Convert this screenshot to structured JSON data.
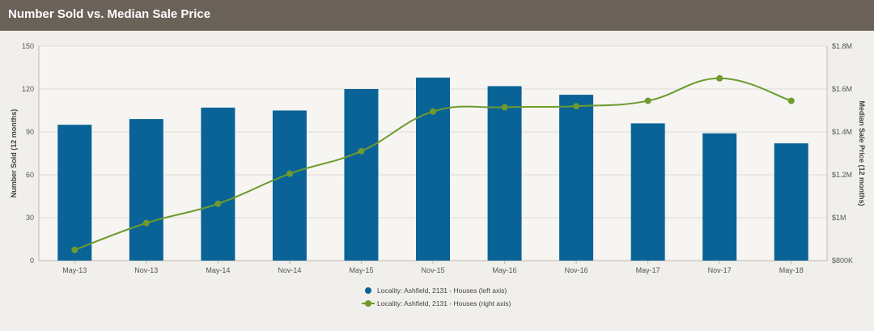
{
  "header": {
    "title": "Number Sold vs. Median Sale Price"
  },
  "colors": {
    "header_bg": "#6a6158",
    "bar": "#0a6397",
    "line": "#6e9a2e",
    "grid": "#dcdad6"
  },
  "chart_data": {
    "type": "bar+line",
    "title": "Number Sold vs. Median Sale Price",
    "categories": [
      "May-13",
      "Nov-13",
      "May-14",
      "Nov-14",
      "May-15",
      "Nov-15",
      "May-16",
      "Nov-16",
      "May-17",
      "Nov-17",
      "May-18"
    ],
    "ylabel_left": "Number Sold (12 months)",
    "ylabel_right": "Median Sale Price (12 months)",
    "ylim_left": [
      0,
      150
    ],
    "ylim_right": [
      800000,
      1800000
    ],
    "yticks_left": [
      "0",
      "30",
      "60",
      "90",
      "120",
      "150"
    ],
    "yticks_right": [
      "$800K",
      "$1M",
      "$1.2M",
      "$1.4M",
      "$1.6M",
      "$1.8M"
    ],
    "grid": true,
    "legend_position": "bottom",
    "series": [
      {
        "name": "Locality: Ashfield, 2131 - Houses (left axis)",
        "type": "bar",
        "axis": "left",
        "values": [
          95,
          99,
          107,
          105,
          120,
          128,
          122,
          116,
          96,
          89,
          82
        ]
      },
      {
        "name": "Locality: Ashfield, 2131 - Houses (right axis)",
        "type": "line",
        "axis": "right",
        "values": [
          850000,
          975000,
          1065000,
          1205000,
          1310000,
          1495000,
          1515000,
          1520000,
          1545000,
          1650000,
          1545000
        ]
      }
    ]
  }
}
